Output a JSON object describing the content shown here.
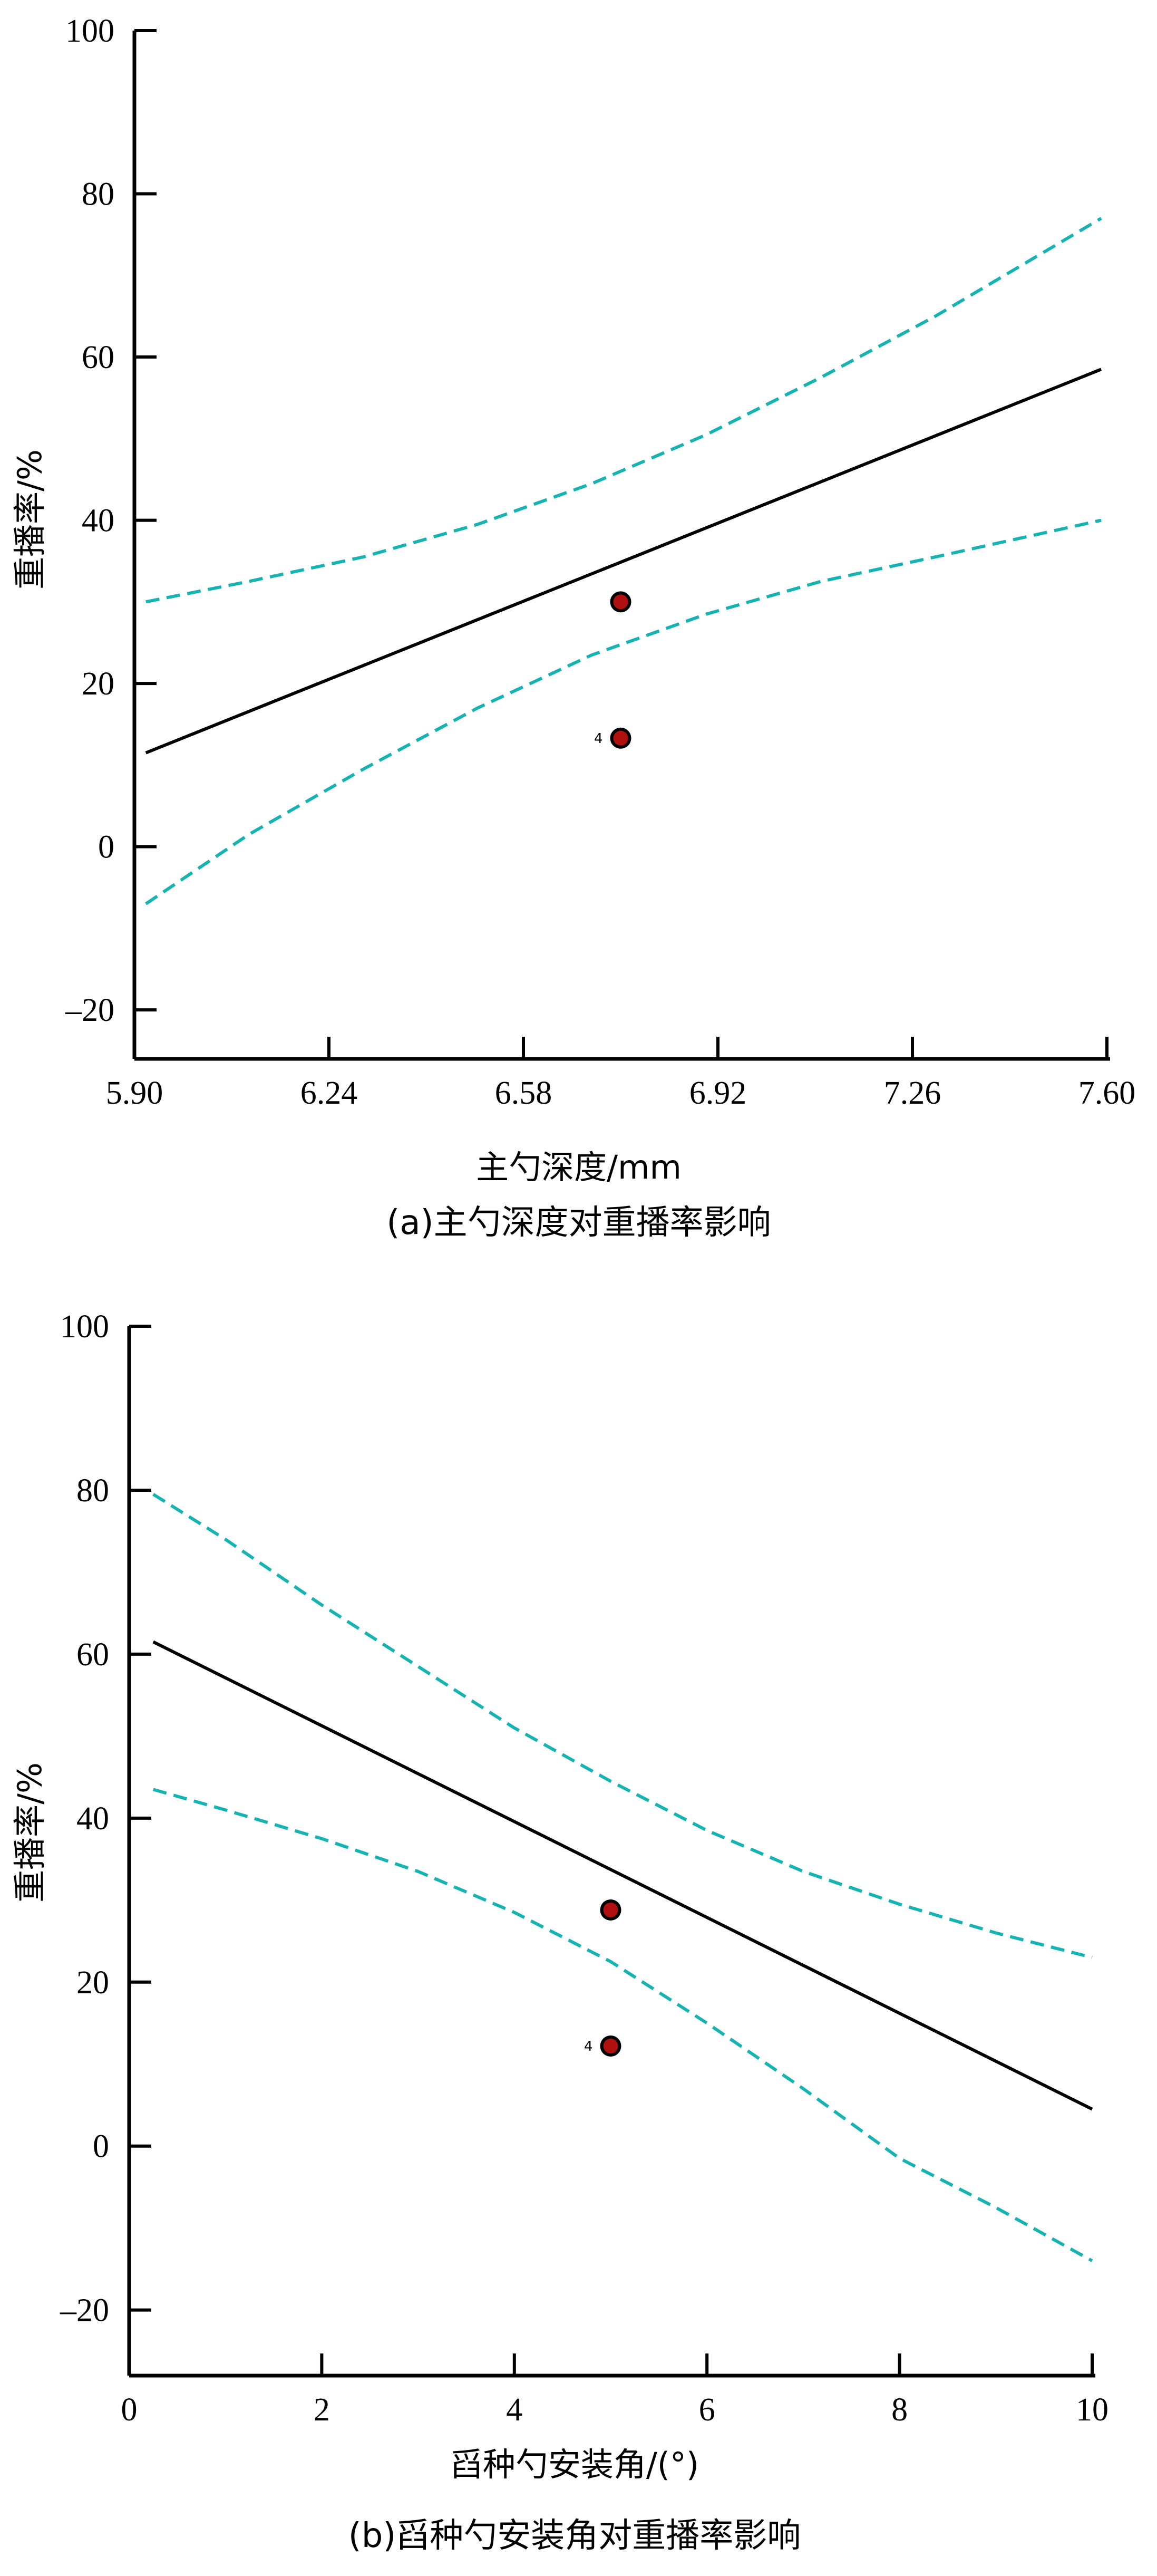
{
  "chart_data": [
    {
      "type": "line",
      "caption": "(a)主勺深度对重播率影响",
      "xlabel": "主勺深度/mm",
      "ylabel": "重播率/%",
      "xlim": [
        5.9,
        7.6
      ],
      "ylim": [
        -26,
        100
      ],
      "x_ticks": [
        5.9,
        6.24,
        6.58,
        6.92,
        7.26,
        7.6
      ],
      "x_tick_labels": [
        "5.90",
        "6.24",
        "6.58",
        "6.92",
        "7.26",
        "7.60"
      ],
      "y_ticks": [
        100,
        80,
        60,
        40,
        20,
        0,
        -20
      ],
      "y_tick_labels": [
        "100",
        "80",
        "60",
        "40",
        "20",
        "0",
        "–20"
      ],
      "series": [
        {
          "role": "fit",
          "style": "solid",
          "color": "#000000",
          "x": [
            5.92,
            7.59
          ],
          "y": [
            11.5,
            58.5
          ]
        },
        {
          "role": "upper",
          "style": "dashed",
          "color": "#16b3b3",
          "x": [
            5.92,
            6.1,
            6.3,
            6.5,
            6.7,
            6.9,
            7.1,
            7.3,
            7.59
          ],
          "y": [
            30,
            32.5,
            35.5,
            39.5,
            44.5,
            50.5,
            57.5,
            65,
            77
          ]
        },
        {
          "role": "lower",
          "style": "dashed",
          "color": "#16b3b3",
          "x": [
            5.92,
            6.1,
            6.3,
            6.5,
            6.7,
            6.9,
            7.1,
            7.3,
            7.59
          ],
          "y": [
            -7,
            1.5,
            9.5,
            17,
            23.5,
            28.5,
            32.5,
            35.5,
            40
          ]
        }
      ],
      "points": [
        {
          "x": 6.75,
          "y": 30,
          "label": ""
        },
        {
          "x": 6.75,
          "y": 13.3,
          "label": "4"
        }
      ]
    },
    {
      "type": "line",
      "caption": "(b)舀种勺安装角对重播率影响",
      "xlabel": "舀种勺安装角/(°)",
      "ylabel": "重播率/%",
      "xlim": [
        0,
        10
      ],
      "ylim": [
        -28,
        100
      ],
      "x_ticks": [
        0,
        2,
        4,
        6,
        8,
        10
      ],
      "x_tick_labels": [
        "0",
        "2",
        "4",
        "6",
        "8",
        "10"
      ],
      "y_ticks": [
        100,
        80,
        60,
        40,
        20,
        0,
        -20
      ],
      "y_tick_labels": [
        "100",
        "80",
        "60",
        "40",
        "20",
        "0",
        "–20"
      ],
      "series": [
        {
          "role": "fit",
          "style": "solid",
          "color": "#000000",
          "x": [
            0.25,
            10
          ],
          "y": [
            61.5,
            4.5
          ]
        },
        {
          "role": "upper",
          "style": "dashed",
          "color": "#16b3b3",
          "x": [
            0.25,
            1,
            2,
            3,
            4,
            5,
            6,
            7,
            8,
            9,
            10
          ],
          "y": [
            79.5,
            74,
            66,
            58.5,
            51,
            44.5,
            38.5,
            33.5,
            29.5,
            26,
            23
          ]
        },
        {
          "role": "lower",
          "style": "dashed",
          "color": "#16b3b3",
          "x": [
            0.25,
            1,
            2,
            3,
            4,
            5,
            6,
            7,
            8,
            9,
            10
          ],
          "y": [
            43.5,
            41,
            37.5,
            33.5,
            28.5,
            22.5,
            15,
            7,
            -1.5,
            -7.5,
            -14
          ]
        }
      ],
      "points": [
        {
          "x": 5,
          "y": 28.8,
          "label": ""
        },
        {
          "x": 5,
          "y": 12.2,
          "label": "4"
        }
      ]
    }
  ]
}
